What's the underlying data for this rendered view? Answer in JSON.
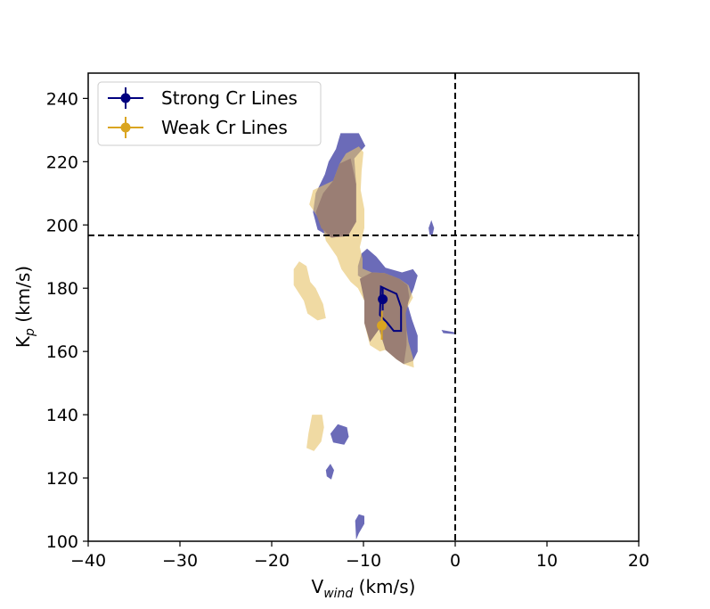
{
  "chart_data": {
    "type": "contour",
    "title": "",
    "xlabel": "V",
    "xlabel_sub": "wind",
    "xlabel_unit": " (km/s)",
    "ylabel": "K",
    "ylabel_sub": "p",
    "ylabel_unit": " (km/s)",
    "xlim": [
      -40,
      20
    ],
    "ylim": [
      100,
      248
    ],
    "xticks": [
      -40,
      -30,
      -20,
      -10,
      0,
      10,
      20
    ],
    "xtick_labels": [
      "−40",
      "−30",
      "−20",
      "−10",
      "0",
      "10",
      "20"
    ],
    "yticks": [
      100,
      120,
      140,
      160,
      180,
      200,
      220,
      240
    ],
    "ytick_labels": [
      "100",
      "120",
      "140",
      "160",
      "180",
      "200",
      "220",
      "240"
    ],
    "reference_lines": {
      "vertical_x": 0,
      "horizontal_y": 196.7,
      "style": "dashed"
    },
    "legend": {
      "position": "top-left",
      "entries": [
        {
          "label": "Strong Cr Lines",
          "color": "#00007f"
        },
        {
          "label": "Weak Cr Lines",
          "color": "#daa520"
        }
      ]
    },
    "series": [
      {
        "name": "Strong Cr Lines",
        "color": "#00007f",
        "fill_color": "#6b6bb8",
        "peak": {
          "x": -7.9,
          "y": 176.5,
          "xerr": 0.4,
          "yerr": 3.5
        },
        "contour_filled": [
          [
            [
              -13.8,
              220
            ],
            [
              -13,
              224
            ],
            [
              -12.5,
              229
            ],
            [
              -10.5,
              229
            ],
            [
              -9.8,
              225
            ],
            [
              -11,
              221
            ],
            [
              -10.8,
              213
            ],
            [
              -10.8,
              207
            ],
            [
              -10.8,
              201
            ],
            [
              -11.7,
              196.5
            ],
            [
              -13.5,
              196
            ],
            [
              -15,
              198.5
            ],
            [
              -15.5,
              204
            ],
            [
              -15.2,
              210
            ],
            [
              -14.2,
              216
            ]
          ],
          [
            [
              -10.6,
              187
            ],
            [
              -10.2,
              191
            ],
            [
              -9.6,
              192.5
            ],
            [
              -8.6,
              190
            ],
            [
              -7.6,
              186.5
            ],
            [
              -5.8,
              185
            ],
            [
              -4.6,
              186
            ],
            [
              -4.1,
              184
            ],
            [
              -4.5,
              180
            ],
            [
              -5.2,
              175
            ],
            [
              -4.7,
              170
            ],
            [
              -4.1,
              165
            ],
            [
              -4.1,
              160
            ],
            [
              -4.6,
              157
            ],
            [
              -5.6,
              156
            ],
            [
              -6.6,
              160
            ],
            [
              -7.3,
              165
            ],
            [
              -8.3,
              167
            ],
            [
              -9.1,
              172
            ],
            [
              -9.3,
              178
            ],
            [
              -9.6,
              182
            ],
            [
              -10.6,
              184
            ]
          ],
          [
            [
              -2.9,
              199
            ],
            [
              -2.6,
              201.5
            ],
            [
              -2.3,
              199
            ],
            [
              -2.5,
              196.5
            ],
            [
              -2.8,
              197
            ]
          ],
          [
            [
              -1.5,
              166.8
            ],
            [
              0.1,
              166
            ],
            [
              -0.1,
              165.5
            ],
            [
              -1.3,
              165.8
            ]
          ],
          [
            [
              -13.6,
              134
            ],
            [
              -12.8,
              137
            ],
            [
              -11.8,
              136
            ],
            [
              -11.6,
              133
            ],
            [
              -12.1,
              130.5
            ],
            [
              -13.3,
              131.2
            ]
          ],
          [
            [
              -14.1,
              122.5
            ],
            [
              -13.6,
              124.5
            ],
            [
              -13.2,
              122.5
            ],
            [
              -13.5,
              119.5
            ],
            [
              -14,
              120.5
            ]
          ],
          [
            [
              -10.9,
              106.5
            ],
            [
              -10.5,
              108.5
            ],
            [
              -9.9,
              108
            ],
            [
              -9.9,
              105.5
            ],
            [
              -10.5,
              102.5
            ],
            [
              -10.8,
              100.5
            ]
          ]
        ],
        "contour_line": [
          [
            -8.2,
            172
          ],
          [
            -8.1,
            180.5
          ],
          [
            -7.6,
            179.8
          ],
          [
            -6.4,
            178.2
          ],
          [
            -5.9,
            174
          ],
          [
            -5.9,
            166.5
          ],
          [
            -6.7,
            166.5
          ],
          [
            -7.4,
            169
          ],
          [
            -8.2,
            171.5
          ]
        ]
      },
      {
        "name": "Weak Cr Lines",
        "color": "#daa520",
        "fill_color": "#e6c36b",
        "peak": {
          "x": -8.0,
          "y": 168.2,
          "xerr": 0.4,
          "yerr": 4.5
        },
        "contour_filled": [
          [
            [
              -10.2,
              217
            ],
            [
              -10,
              223
            ],
            [
              -10.5,
              224.8
            ],
            [
              -11.9,
              222.6
            ],
            [
              -12.6,
              219.4
            ],
            [
              -13.3,
              214
            ],
            [
              -15.5,
              211
            ],
            [
              -15.9,
              206.5
            ],
            [
              -15.1,
              203
            ],
            [
              -14.4,
              199
            ],
            [
              -14.1,
              195
            ],
            [
              -12.9,
              190
            ],
            [
              -12.4,
              186
            ],
            [
              -11.4,
              182
            ],
            [
              -10.6,
              180
            ],
            [
              -9.9,
              176
            ],
            [
              -9.9,
              169
            ],
            [
              -9.6,
              165.5
            ],
            [
              -9.3,
              162
            ],
            [
              -8.2,
              160
            ],
            [
              -7.6,
              160.5
            ],
            [
              -6.4,
              157.5
            ],
            [
              -5.6,
              156
            ],
            [
              -4.5,
              154.9
            ],
            [
              -4.6,
              158
            ],
            [
              -5.1,
              163
            ],
            [
              -5.3,
              167
            ],
            [
              -5.6,
              172
            ],
            [
              -4.6,
              177
            ],
            [
              -5.1,
              181
            ],
            [
              -6.1,
              183
            ],
            [
              -7.7,
              184.8
            ],
            [
              -9.1,
              185
            ],
            [
              -10.1,
              186.2
            ],
            [
              -10.1,
              189.3
            ],
            [
              -10.4,
              193
            ],
            [
              -9.9,
              199
            ],
            [
              -9.9,
              205
            ],
            [
              -10.3,
              211
            ]
          ],
          [
            [
              -17.6,
              186
            ],
            [
              -17,
              188.5
            ],
            [
              -16.2,
              187
            ],
            [
              -15.8,
              182
            ],
            [
              -15.2,
              180
            ],
            [
              -14.4,
              175
            ],
            [
              -14.1,
              170.5
            ],
            [
              -15,
              169.8
            ],
            [
              -16.1,
              172
            ],
            [
              -16.5,
              176
            ],
            [
              -17.6,
              181
            ]
          ],
          [
            [
              -16,
              134
            ],
            [
              -15.6,
              140
            ],
            [
              -14.5,
              140
            ],
            [
              -14.3,
              136
            ],
            [
              -14.6,
              131.5
            ],
            [
              -15.4,
              128.5
            ],
            [
              -16.2,
              129.5
            ]
          ]
        ],
        "overlap_regions": [
          [
            [
              -13.3,
              214
            ],
            [
              -12.6,
              219.4
            ],
            [
              -11.4,
              221
            ],
            [
              -10.8,
              213
            ],
            [
              -10.8,
              207
            ],
            [
              -10.8,
              201
            ],
            [
              -11.7,
              196.5
            ],
            [
              -13.5,
              196
            ],
            [
              -14.6,
              199
            ],
            [
              -15.2,
              204
            ],
            [
              -14.4,
              210
            ]
          ],
          [
            [
              -10.4,
              183
            ],
            [
              -9.9,
              176
            ],
            [
              -9.9,
              169
            ],
            [
              -9.3,
              163
            ],
            [
              -8.3,
              167
            ],
            [
              -7.6,
              160.5
            ],
            [
              -6.4,
              157.5
            ],
            [
              -5.6,
              156
            ],
            [
              -5.3,
              162
            ],
            [
              -5.3,
              167
            ],
            [
              -5.4,
              172
            ],
            [
              -5,
              177
            ],
            [
              -5.2,
              181
            ],
            [
              -6.1,
              183
            ],
            [
              -7.7,
              184.8
            ],
            [
              -9.1,
              185
            ]
          ]
        ]
      }
    ]
  }
}
